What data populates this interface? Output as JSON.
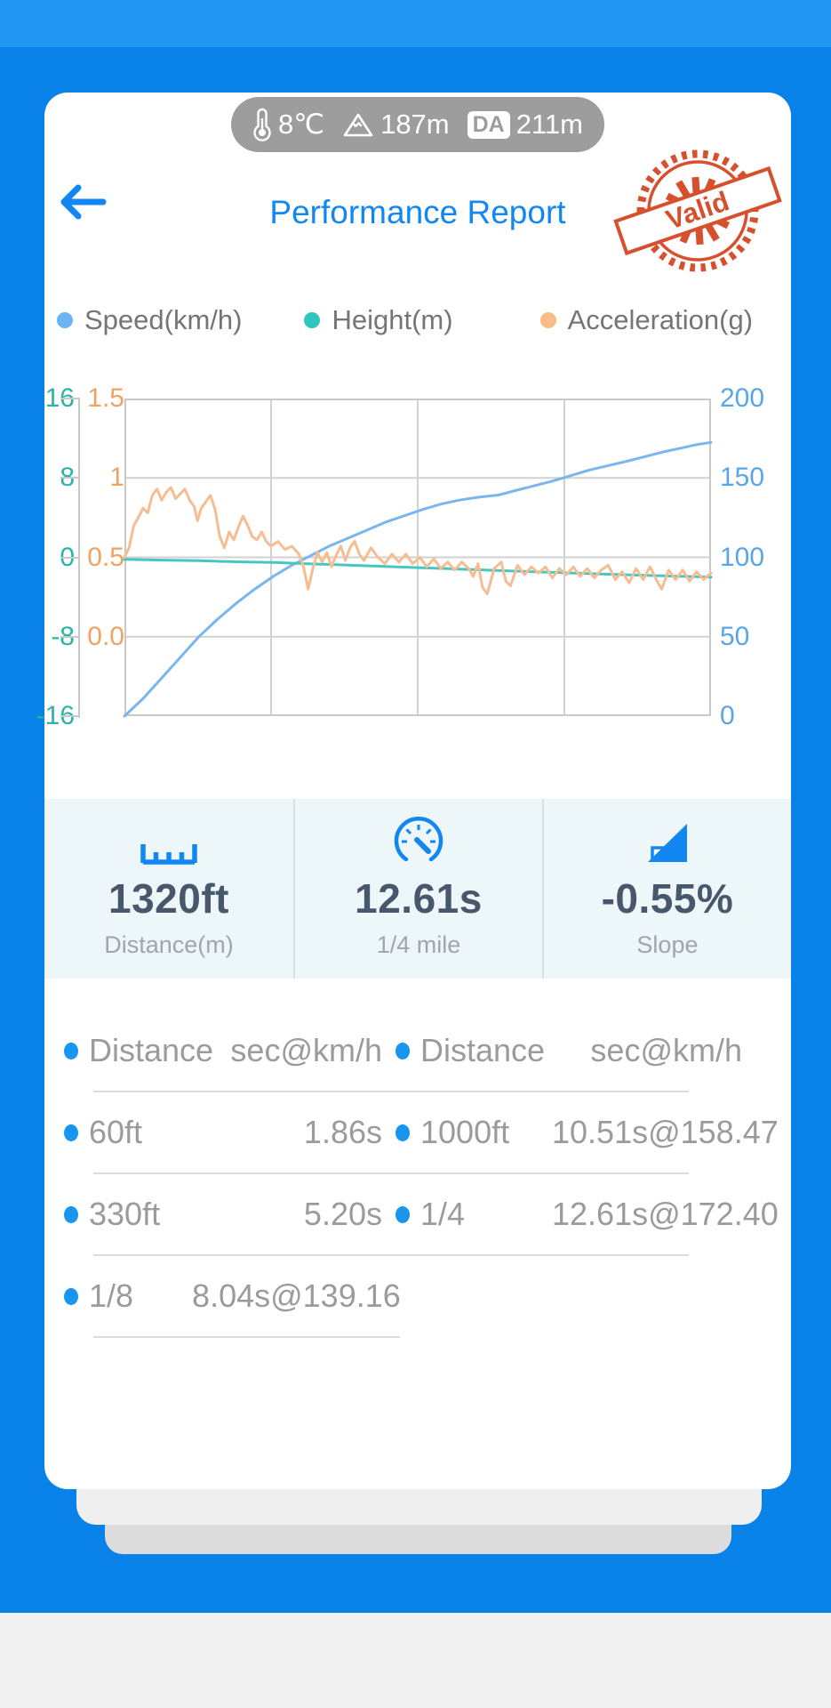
{
  "status_pill": {
    "temperature": "8℃",
    "altitude": "187m",
    "da_label": "DA",
    "density_altitude": "211m"
  },
  "header": {
    "title": "Performance Report",
    "stamp_text": "Valid",
    "stamp_color": "#d6502d",
    "title_color": "#1287f2"
  },
  "legend": [
    {
      "label": "Speed(km/h)",
      "color": "#6db4f5"
    },
    {
      "label": "Height(m)",
      "color": "#2fc7bd"
    },
    {
      "label": "Acceleration(g)",
      "color": "#f8bc86"
    }
  ],
  "chart_data": {
    "type": "line",
    "x_range": [
      0,
      12.61
    ],
    "grid": {
      "v_divisions": 4,
      "h_divisions": 4,
      "grid_on": true
    },
    "axes": {
      "height": {
        "side": "outer-left",
        "color": "#2bb3a8",
        "range": [
          -16,
          16
        ],
        "ticks": [
          "16",
          "8",
          "0",
          "-8",
          "-16"
        ]
      },
      "accel": {
        "side": "inner-left",
        "color": "#f0a263",
        "range": [
          -0.5,
          1.5
        ],
        "ticks": [
          "1.5",
          "1",
          "0.5",
          "0.0"
        ]
      },
      "speed": {
        "side": "right",
        "color": "#58a6ea",
        "range": [
          0,
          200
        ],
        "ticks": [
          "200",
          "150",
          "100",
          "50",
          "0"
        ]
      }
    },
    "series": [
      {
        "name": "Speed(km/h)",
        "axis": "speed",
        "color": "#79b6ee",
        "points": [
          [
            0,
            0
          ],
          [
            0.4,
            11
          ],
          [
            0.8,
            24
          ],
          [
            1.2,
            37
          ],
          [
            1.6,
            50
          ],
          [
            2.0,
            61
          ],
          [
            2.4,
            71
          ],
          [
            2.8,
            80
          ],
          [
            3.2,
            88
          ],
          [
            3.6,
            95
          ],
          [
            4.0,
            101
          ],
          [
            4.4,
            107
          ],
          [
            4.8,
            112
          ],
          [
            5.2,
            117
          ],
          [
            5.6,
            122
          ],
          [
            6.0,
            126
          ],
          [
            6.4,
            130
          ],
          [
            6.8,
            133.5
          ],
          [
            7.2,
            136
          ],
          [
            7.6,
            137.8
          ],
          [
            8.04,
            139.2
          ],
          [
            8.4,
            142
          ],
          [
            8.8,
            145
          ],
          [
            9.2,
            148
          ],
          [
            9.6,
            151.5
          ],
          [
            10.0,
            155
          ],
          [
            10.51,
            158.5
          ],
          [
            10.8,
            160.5
          ],
          [
            11.2,
            163.5
          ],
          [
            11.6,
            166.5
          ],
          [
            12.0,
            169
          ],
          [
            12.3,
            171
          ],
          [
            12.61,
            172.4
          ]
        ]
      },
      {
        "name": "Height(m)",
        "axis": "height",
        "color": "#46c8c0",
        "points": [
          [
            0,
            -0.2
          ],
          [
            0.8,
            -0.28
          ],
          [
            1.6,
            -0.34
          ],
          [
            2.4,
            -0.45
          ],
          [
            3.2,
            -0.52
          ],
          [
            4.0,
            -0.66
          ],
          [
            4.8,
            -0.78
          ],
          [
            5.6,
            -0.92
          ],
          [
            6.4,
            -1.05
          ],
          [
            7.2,
            -1.18
          ],
          [
            8.0,
            -1.32
          ],
          [
            8.8,
            -1.45
          ],
          [
            9.6,
            -1.58
          ],
          [
            10.4,
            -1.7
          ],
          [
            11.2,
            -1.82
          ],
          [
            12.0,
            -1.92
          ],
          [
            12.61,
            -2.0
          ]
        ]
      },
      {
        "name": "Acceleration(g)",
        "axis": "accel",
        "color": "#f7bd92",
        "points": [
          [
            0,
            0.5
          ],
          [
            0.1,
            0.56
          ],
          [
            0.2,
            0.7
          ],
          [
            0.3,
            0.75
          ],
          [
            0.4,
            0.81
          ],
          [
            0.5,
            0.78
          ],
          [
            0.6,
            0.89
          ],
          [
            0.7,
            0.93
          ],
          [
            0.8,
            0.86
          ],
          [
            0.9,
            0.91
          ],
          [
            1.0,
            0.94
          ],
          [
            1.1,
            0.87
          ],
          [
            1.2,
            0.9
          ],
          [
            1.3,
            0.93
          ],
          [
            1.4,
            0.86
          ],
          [
            1.5,
            0.82
          ],
          [
            1.57,
            0.73
          ],
          [
            1.65,
            0.81
          ],
          [
            1.75,
            0.85
          ],
          [
            1.85,
            0.89
          ],
          [
            1.95,
            0.8
          ],
          [
            2.05,
            0.63
          ],
          [
            2.15,
            0.56
          ],
          [
            2.25,
            0.66
          ],
          [
            2.35,
            0.61
          ],
          [
            2.45,
            0.69
          ],
          [
            2.55,
            0.76
          ],
          [
            2.65,
            0.7
          ],
          [
            2.75,
            0.63
          ],
          [
            2.85,
            0.61
          ],
          [
            2.95,
            0.66
          ],
          [
            3.05,
            0.6
          ],
          [
            3.15,
            0.57
          ],
          [
            3.3,
            0.6
          ],
          [
            3.45,
            0.55
          ],
          [
            3.6,
            0.57
          ],
          [
            3.75,
            0.52
          ],
          [
            3.85,
            0.44
          ],
          [
            3.95,
            0.3
          ],
          [
            4.05,
            0.43
          ],
          [
            4.15,
            0.53
          ],
          [
            4.25,
            0.47
          ],
          [
            4.35,
            0.53
          ],
          [
            4.45,
            0.44
          ],
          [
            4.55,
            0.51
          ],
          [
            4.65,
            0.57
          ],
          [
            4.75,
            0.48
          ],
          [
            4.85,
            0.56
          ],
          [
            4.95,
            0.6
          ],
          [
            5.05,
            0.52
          ],
          [
            5.15,
            0.48
          ],
          [
            5.3,
            0.56
          ],
          [
            5.45,
            0.5
          ],
          [
            5.6,
            0.46
          ],
          [
            5.75,
            0.52
          ],
          [
            5.9,
            0.47
          ],
          [
            6.05,
            0.52
          ],
          [
            6.2,
            0.46
          ],
          [
            6.35,
            0.5
          ],
          [
            6.5,
            0.44
          ],
          [
            6.65,
            0.49
          ],
          [
            6.8,
            0.43
          ],
          [
            6.95,
            0.47
          ],
          [
            7.1,
            0.42
          ],
          [
            7.25,
            0.47
          ],
          [
            7.4,
            0.43
          ],
          [
            7.5,
            0.38
          ],
          [
            7.6,
            0.46
          ],
          [
            7.7,
            0.31
          ],
          [
            7.8,
            0.27
          ],
          [
            7.95,
            0.43
          ],
          [
            8.1,
            0.47
          ],
          [
            8.2,
            0.35
          ],
          [
            8.3,
            0.32
          ],
          [
            8.45,
            0.45
          ],
          [
            8.6,
            0.39
          ],
          [
            8.75,
            0.44
          ],
          [
            8.9,
            0.4
          ],
          [
            9.05,
            0.44
          ],
          [
            9.2,
            0.37
          ],
          [
            9.35,
            0.43
          ],
          [
            9.5,
            0.39
          ],
          [
            9.65,
            0.44
          ],
          [
            9.8,
            0.38
          ],
          [
            9.95,
            0.43
          ],
          [
            10.1,
            0.37
          ],
          [
            10.25,
            0.42
          ],
          [
            10.4,
            0.45
          ],
          [
            10.55,
            0.36
          ],
          [
            10.7,
            0.41
          ],
          [
            10.85,
            0.34
          ],
          [
            11.0,
            0.43
          ],
          [
            11.15,
            0.36
          ],
          [
            11.3,
            0.44
          ],
          [
            11.45,
            0.35
          ],
          [
            11.55,
            0.3
          ],
          [
            11.7,
            0.42
          ],
          [
            11.85,
            0.36
          ],
          [
            12.0,
            0.42
          ],
          [
            12.15,
            0.35
          ],
          [
            12.3,
            0.41
          ],
          [
            12.45,
            0.36
          ],
          [
            12.61,
            0.4
          ]
        ]
      }
    ]
  },
  "stats": [
    {
      "icon": "ruler-icon",
      "value": "1320ft",
      "label": "Distance(m)"
    },
    {
      "icon": "speedometer-icon",
      "value": "12.61s",
      "label": "1/4 mile"
    },
    {
      "icon": "slope-icon",
      "value": "-0.55%",
      "label": "Slope"
    }
  ],
  "table": {
    "rows": [
      {
        "underline": "long",
        "cells": [
          {
            "label": "Distance",
            "value": "sec@km/h",
            "style": "right"
          },
          {
            "label": "Distance",
            "value": "sec@km/h",
            "style": "right"
          }
        ]
      },
      {
        "underline": "long",
        "cells": [
          {
            "label": "60ft",
            "value": "1.86s",
            "style": "right"
          },
          {
            "label": "1000ft",
            "value": "10.51s@158.47",
            "style": "clip",
            "clipped": true
          }
        ]
      },
      {
        "underline": "long",
        "cells": [
          {
            "label": "330ft",
            "value": "5.20s",
            "style": "right"
          },
          {
            "label": "1/4",
            "value": "12.61s@172.40",
            "style": "clip",
            "clipped": true
          }
        ]
      },
      {
        "underline": "short",
        "cells": [
          {
            "label": "1/8",
            "value": "8.04s@139.16",
            "style": "inline"
          }
        ]
      }
    ]
  }
}
